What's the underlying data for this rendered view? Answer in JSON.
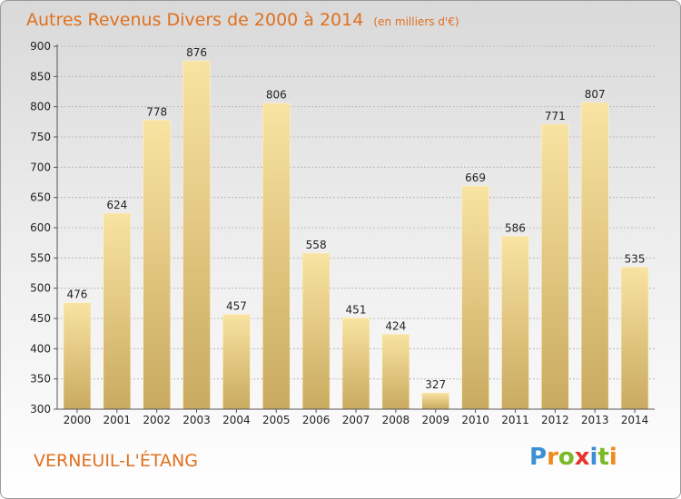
{
  "header": {
    "title": "Autres Revenus Divers de 2000 à 2014",
    "subtitle": "(en milliers d'€)"
  },
  "footer": {
    "commune": "VERNEUIL-L'ÉTANG",
    "brand": "Proxiti"
  },
  "colors": {
    "title": "#e0701e",
    "bar_light": "#f9e3a2",
    "bar_dark": "#c9aa60",
    "grid": "#b0b0b0",
    "brand_p": "#3a8fd6",
    "brand_r": "#f08a1d",
    "brand_o": "#7ab928",
    "brand_x": "#e8322e",
    "brand_i": "#3a8fd6",
    "brand_t": "#7ab928",
    "brand_i2": "#f08a1d"
  },
  "chart_data": {
    "type": "bar",
    "categories": [
      "2000",
      "2001",
      "2002",
      "2003",
      "2004",
      "2005",
      "2006",
      "2007",
      "2008",
      "2009",
      "2010",
      "2011",
      "2012",
      "2013",
      "2014"
    ],
    "values": [
      476,
      624,
      778,
      876,
      457,
      806,
      558,
      451,
      424,
      327,
      669,
      586,
      771,
      807,
      535
    ],
    "ylim": [
      300,
      900
    ],
    "yticks": [
      300,
      350,
      400,
      450,
      500,
      550,
      600,
      650,
      700,
      750,
      800,
      850,
      900
    ],
    "grid": true,
    "title": "Autres Revenus Divers de 2000 à 2014",
    "xlabel": "",
    "ylabel": ""
  }
}
